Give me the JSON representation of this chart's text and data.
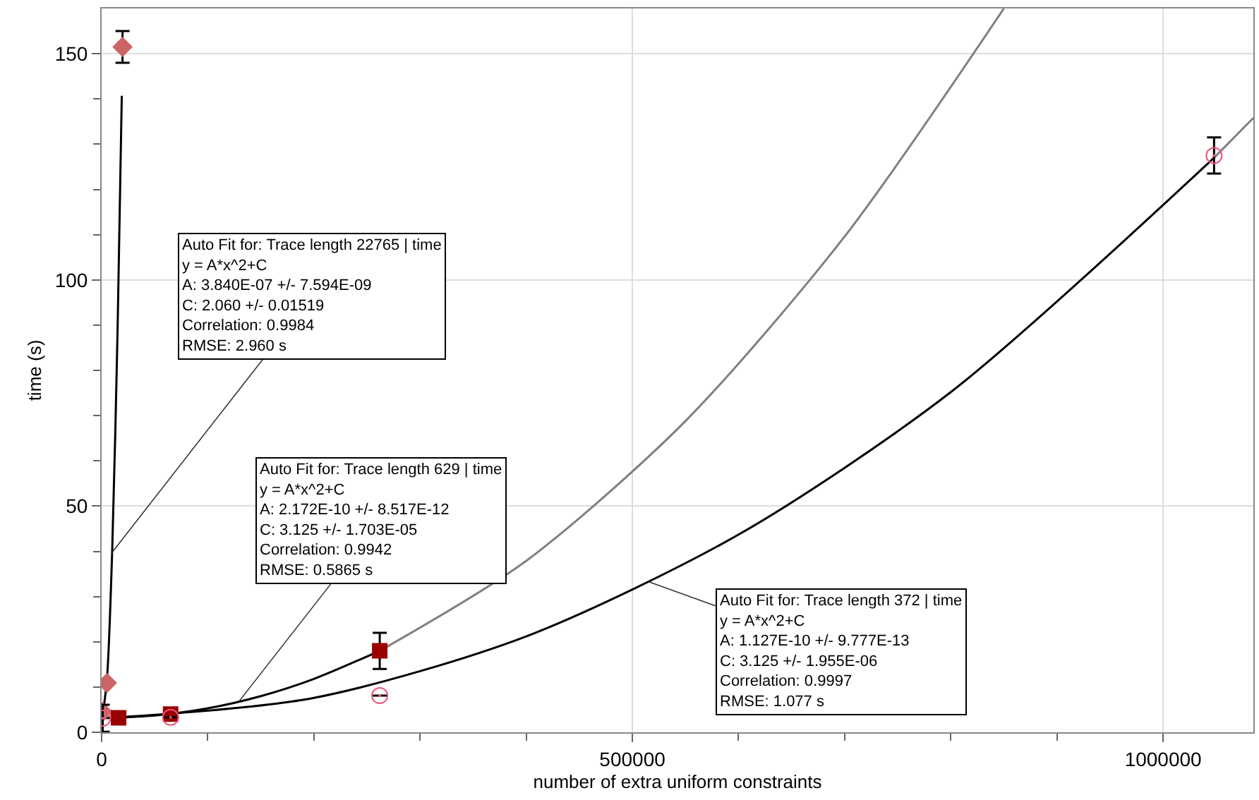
{
  "chart_data": {
    "type": "scatter",
    "xlabel": "number of extra uniform constraints",
    "ylabel": "time (s)",
    "xlim": [
      0,
      1085000
    ],
    "ylim": [
      0,
      160
    ],
    "xticks": [
      0,
      {
        "value": 100000,
        "label": null
      },
      {
        "value": 200000,
        "label": null
      },
      {
        "value": 300000,
        "label": null
      },
      {
        "value": 400000,
        "label": null
      },
      500000,
      {
        "value": 600000,
        "label": null
      },
      {
        "value": 700000,
        "label": null
      },
      {
        "value": 800000,
        "label": null
      },
      {
        "value": 900000,
        "label": null
      },
      1000000
    ],
    "yticks": [
      0,
      {
        "value": 10,
        "label": null
      },
      {
        "value": 20,
        "label": null
      },
      {
        "value": 30,
        "label": null
      },
      {
        "value": 40,
        "label": null
      },
      50,
      {
        "value": 60,
        "label": null
      },
      {
        "value": 70,
        "label": null
      },
      {
        "value": 80,
        "label": null
      },
      {
        "value": 90,
        "label": null
      },
      100,
      {
        "value": 110,
        "label": null
      },
      {
        "value": 120,
        "label": null
      },
      {
        "value": 130,
        "label": null
      },
      {
        "value": 140,
        "label": null
      },
      150
    ],
    "grid": true,
    "series": [
      {
        "type": "line",
        "color": "#000000",
        "marker": "none",
        "x": [
          0,
          5000,
          10000,
          15000,
          19000
        ],
        "values": [
          2.1,
          11.7,
          40.5,
          88.5,
          140.7
        ]
      },
      {
        "type": "line",
        "color": "#000000",
        "marker": "none",
        "x": [
          0,
          50000,
          100000,
          150000,
          200000,
          262000
        ],
        "values": [
          3.1,
          3.7,
          5.3,
          8.0,
          11.8,
          18.0
        ]
      },
      {
        "type": "line",
        "color": "#808080",
        "marker": "none",
        "x": [
          262000,
          400000,
          550000,
          700000,
          850000
        ],
        "values": [
          18.0,
          37.9,
          68.8,
          109.6,
          160
        ]
      },
      {
        "type": "line",
        "color": "#000000",
        "marker": "none",
        "x": [
          0,
          200000,
          400000,
          600000,
          800000,
          1048000
        ],
        "values": [
          3.1,
          7.6,
          21.2,
          43.7,
          75.2,
          127.0
        ]
      },
      {
        "type": "line",
        "color": "#808080",
        "marker": "none",
        "x": [
          1048000,
          1085000
        ],
        "values": [
          127.0,
          135.8
        ]
      },
      {
        "color": "#cc6666",
        "marker": "diamond",
        "x": [
          1000,
          5000,
          19700
        ],
        "values": [
          4.5,
          10.9,
          151.5
        ],
        "errors": [
          null,
          null,
          3.5
        ]
      },
      {
        "color": "#990000",
        "marker": "square",
        "x": [
          16000,
          65000,
          262000
        ],
        "values": [
          3.2,
          4.0,
          18.0
        ],
        "errors": [
          null,
          null,
          4
        ]
      },
      {
        "color": "#ee5577",
        "marker": "circle",
        "x": [
          1000,
          65000,
          262000,
          1048000
        ],
        "values": [
          3.1,
          3.3,
          8.1,
          127.5
        ],
        "errors": [
          3,
          null,
          null,
          4
        ]
      }
    ],
    "annotations": [
      {
        "text": "Auto Fit for: Trace length 22765 | time\ny = A*x^2+C\nA: 3.840E-07 +/- 7.594E-09\nC: 2.060 +/- 0.01519\nCorrelation: 0.9984\nRMSE: 2.960 s",
        "x": 9000,
        "y": 39.5
      },
      {
        "text": "Auto Fit for: Trace length 629 | time\ny = A*x^2+C\nA: 2.172E-10 +/- 8.517E-12\nC: 3.125 +/- 1.703E-05\nCorrelation: 0.9942\nRMSE: 0.5865 s",
        "x": 130000,
        "y": 7.0
      },
      {
        "text": "Auto Fit for: Trace length 372 | time\ny = A*x^2+C\nA: 1.127E-10 +/- 9.777E-13\nC: 3.125 +/- 1.955E-06\nCorrelation: 0.9997\nRMSE: 1.077 s",
        "x": 516000,
        "y": 33.2
      }
    ]
  }
}
